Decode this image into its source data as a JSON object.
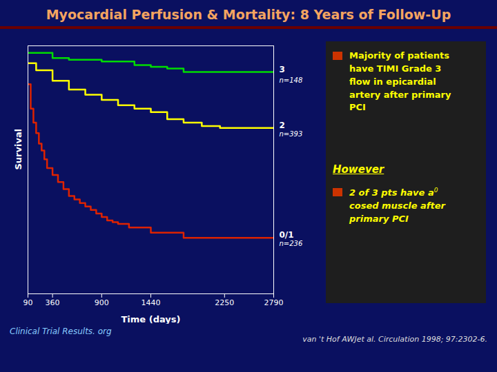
{
  "chart_data": {
    "type": "line",
    "title": "Myocardial Perfusion & Mortality: 8 Years of Follow-Up",
    "x_label": "Time (days)",
    "y_label": "Survival",
    "xlim": [
      90,
      2790
    ],
    "xticks": [
      90,
      360,
      900,
      1440,
      2250,
      2790
    ],
    "ylim": [
      0.3,
      1.01
    ],
    "yticks": [],
    "tick_labels": "x",
    "grid": false,
    "series": [
      {
        "name": "3",
        "color": "#00DD00",
        "x": [
          90,
          360,
          360,
          540,
          540,
          900,
          900,
          1260,
          1260,
          1440,
          1440,
          1620,
          1620,
          1800,
          1800,
          2790
        ],
        "values": [
          0.99,
          0.99,
          0.975,
          0.975,
          0.97,
          0.97,
          0.965,
          0.965,
          0.955,
          0.955,
          0.95,
          0.95,
          0.945,
          0.945,
          0.935,
          0.935
        ]
      },
      {
        "name": "2",
        "color": "#FFFF00",
        "x": [
          90,
          180,
          180,
          360,
          360,
          540,
          540,
          720,
          720,
          900,
          900,
          1080,
          1080,
          1260,
          1260,
          1440,
          1440,
          1620,
          1620,
          1800,
          1800,
          2000,
          2000,
          2200,
          2200,
          2790
        ],
        "values": [
          0.96,
          0.96,
          0.94,
          0.94,
          0.91,
          0.91,
          0.885,
          0.885,
          0.87,
          0.87,
          0.855,
          0.855,
          0.84,
          0.84,
          0.83,
          0.83,
          0.82,
          0.82,
          0.8,
          0.8,
          0.79,
          0.79,
          0.78,
          0.78,
          0.775,
          0.775
        ]
      },
      {
        "name": "0/1",
        "color": "#DD2200",
        "x": [
          90,
          120,
          120,
          150,
          150,
          180,
          180,
          210,
          210,
          240,
          240,
          270,
          270,
          300,
          300,
          360,
          360,
          420,
          420,
          480,
          480,
          540,
          540,
          600,
          600,
          660,
          660,
          720,
          720,
          780,
          780,
          840,
          840,
          900,
          900,
          960,
          960,
          1020,
          1020,
          1080,
          1080,
          1200,
          1200,
          1440,
          1440,
          1800,
          1800,
          2790
        ],
        "values": [
          0.9,
          0.9,
          0.83,
          0.83,
          0.79,
          0.79,
          0.76,
          0.76,
          0.73,
          0.73,
          0.71,
          0.71,
          0.685,
          0.685,
          0.66,
          0.66,
          0.64,
          0.64,
          0.62,
          0.62,
          0.6,
          0.6,
          0.58,
          0.58,
          0.57,
          0.57,
          0.56,
          0.56,
          0.55,
          0.55,
          0.54,
          0.54,
          0.53,
          0.53,
          0.52,
          0.52,
          0.51,
          0.51,
          0.505,
          0.505,
          0.5,
          0.5,
          0.49,
          0.49,
          0.475,
          0.475,
          0.46,
          0.46
        ]
      }
    ],
    "annotations": [
      {
        "text": "n=148",
        "x": 2790,
        "y": 0.918
      },
      {
        "text": "n=393",
        "x": 2790,
        "y": 0.765
      },
      {
        "text": "n=236",
        "x": 2790,
        "y": 0.452
      }
    ],
    "side_text": [
      "Majority of patients\nhave TIMI Grade 3\nflow in epicardial\nartery after primary\nPCI",
      "However",
      "2 of 3 pts have a",
      "0",
      "cosed muscle after\nprimary PCI"
    ],
    "footnotes": [
      "Clinical Trial Results. org",
      "van 't Hof AWJet al. Circulation 1998; 97:2302-6."
    ]
  }
}
